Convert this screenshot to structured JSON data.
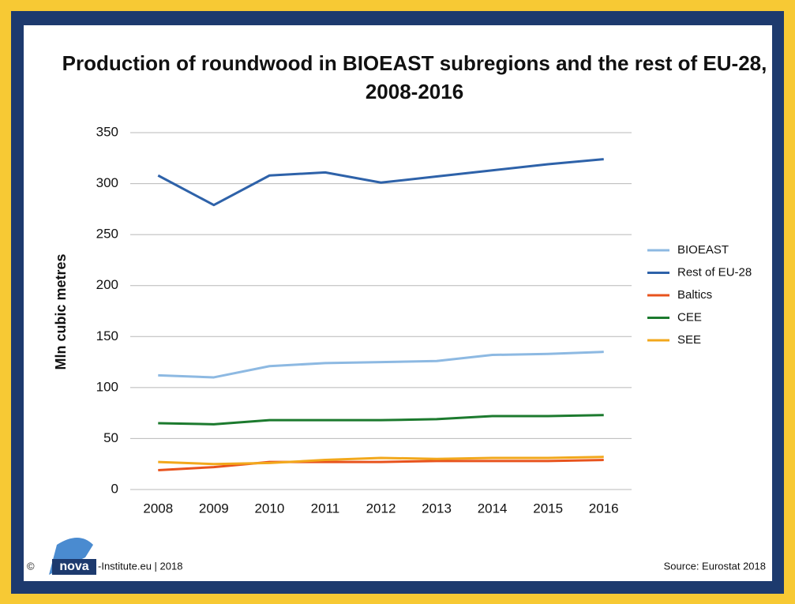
{
  "chart_data": {
    "type": "line",
    "title": "Production of roundwood in BIOEAST subregions and the rest of EU-28, 2008-2016",
    "y_label": "Mln cubic metres",
    "categories": [
      "2008",
      "2009",
      "2010",
      "2011",
      "2012",
      "2013",
      "2014",
      "2015",
      "2016"
    ],
    "series": [
      {
        "name": "BIOEAST",
        "color": "#8db9e2",
        "values": [
          112,
          110,
          121,
          124,
          125,
          126,
          132,
          133,
          135
        ]
      },
      {
        "name": "Rest of EU-28",
        "color": "#2e62a9",
        "values": [
          308,
          279,
          308,
          311,
          301,
          307,
          313,
          319,
          324
        ]
      },
      {
        "name": "Baltics",
        "color": "#e8531d",
        "values": [
          19,
          22,
          27,
          27,
          27,
          28,
          28,
          28,
          29
        ]
      },
      {
        "name": "CEE",
        "color": "#1c7a2e",
        "values": [
          65,
          64,
          68,
          68,
          68,
          69,
          72,
          72,
          73
        ]
      },
      {
        "name": "SEE",
        "color": "#f2a81c",
        "values": [
          27,
          25,
          26,
          29,
          31,
          30,
          31,
          31,
          32
        ]
      }
    ],
    "ylim": [
      0,
      350
    ],
    "yticks": [
      0,
      50,
      100,
      150,
      200,
      250,
      300,
      350
    ],
    "grid": true,
    "legend": "right"
  },
  "footer": {
    "copyright": "©",
    "logo": "nova",
    "credit": "-Institute.eu | 2018",
    "source": "Source: Eurostat 2018"
  }
}
